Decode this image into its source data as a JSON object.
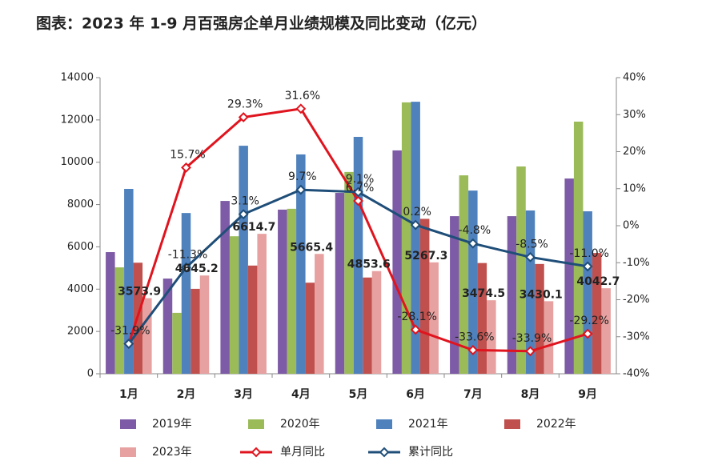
{
  "chart_data": {
    "type": "bar",
    "title": "图表：2023 年 1-9 月百强房企单月业绩规模及同比变动（亿元）",
    "categories": [
      "1月",
      "2月",
      "3月",
      "4月",
      "5月",
      "6月",
      "7月",
      "8月",
      "9月"
    ],
    "series": [
      {
        "name": "2019年",
        "color": "#7d5ba6",
        "values": [
          5750,
          4500,
          8170,
          7760,
          8550,
          10560,
          7450,
          7450,
          9230
        ]
      },
      {
        "name": "2020年",
        "color": "#9bbb59",
        "values": [
          5030,
          2880,
          6500,
          7800,
          9540,
          12830,
          9380,
          9800,
          11920
        ]
      },
      {
        "name": "2021年",
        "color": "#4f81bd",
        "values": [
          8740,
          7600,
          10780,
          10370,
          11200,
          12860,
          8660,
          7720,
          7680
        ]
      },
      {
        "name": "2022年",
        "color": "#c0504d",
        "values": [
          5250,
          4015,
          5115,
          4305,
          4550,
          7325,
          5235,
          5190,
          5710
        ]
      },
      {
        "name": "2023年",
        "color": "#e6a1a0",
        "values": [
          3573.9,
          4645.2,
          6614.7,
          5665.4,
          4853.6,
          5267.3,
          3474.5,
          3430.1,
          4042.7
        ]
      },
      {
        "name": "单月同比",
        "type": "line",
        "axis": "y2",
        "color": "#e0141e",
        "values": [
          -31.9,
          15.7,
          29.3,
          31.6,
          6.7,
          -28.1,
          -33.6,
          -33.9,
          -29.2
        ],
        "value_labels": [
          "-31.9%",
          "15.7%",
          "29.3%",
          "31.6%",
          "6.7%",
          "-28.1%",
          "-33.6%",
          "-33.9%",
          "-29.2%"
        ]
      },
      {
        "name": "累计同比",
        "type": "line",
        "axis": "y2",
        "color": "#1f4e79",
        "values": [
          -31.9,
          -11.3,
          3.1,
          9.7,
          9.1,
          0.2,
          -4.8,
          -8.5,
          -11.0
        ],
        "value_labels": [
          null,
          "-11.3%",
          "3.1%",
          "9.7%",
          "9.1%",
          "0.2%",
          "-4.8%",
          "-8.5%",
          "-11.0%"
        ]
      }
    ],
    "ylim": [
      0,
      14000
    ],
    "yticks": [
      0,
      2000,
      4000,
      6000,
      8000,
      10000,
      12000,
      14000
    ],
    "y2lim": [
      -40,
      40
    ],
    "y2ticks": [
      {
        "value": -40,
        "label": "-40%"
      },
      {
        "value": -30,
        "label": "-30%"
      },
      {
        "value": -20,
        "label": "-20%"
      },
      {
        "value": -10,
        "label": "-10%"
      },
      {
        "value": 0,
        "label": "0%"
      },
      {
        "value": 10,
        "label": "10%"
      },
      {
        "value": 20,
        "label": "20%"
      },
      {
        "value": 30,
        "label": "30%"
      },
      {
        "value": 40,
        "label": "40%"
      }
    ]
  }
}
